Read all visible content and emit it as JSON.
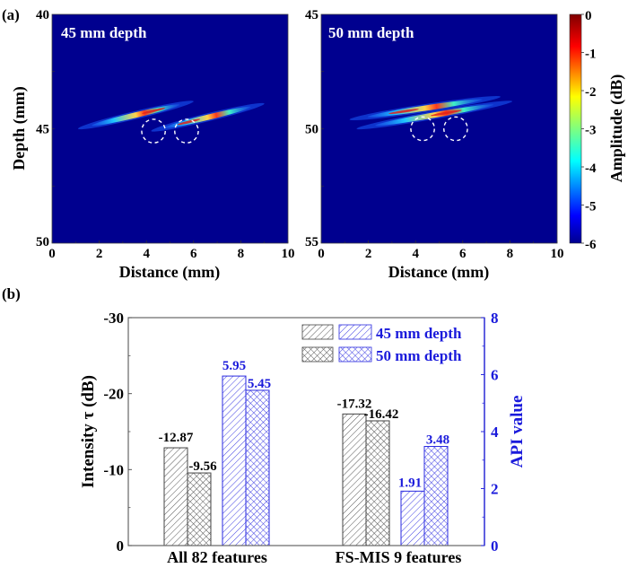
{
  "panel_labels": {
    "a": "(a)",
    "b": "(b)"
  },
  "chart_data": [
    {
      "type": "heatmap",
      "panel": "a-left",
      "title": "45 mm depth",
      "xlabel": "Distance (mm)",
      "ylabel": "Depth (mm)",
      "xlim": [
        0,
        10
      ],
      "ylim": [
        40,
        50
      ],
      "x_ticks": [
        "0",
        "2",
        "4",
        "6",
        "8",
        "10"
      ],
      "y_ticks": [
        "40",
        "45",
        "50"
      ],
      "background_color": "#00008f",
      "streaks": [
        {
          "x_start": 1.1,
          "x_end": 6.0,
          "depth_start": 45.0,
          "depth_end": 43.8,
          "peak_x": 4.3
        },
        {
          "x_start": 4.2,
          "x_end": 9.0,
          "depth_start": 45.1,
          "depth_end": 43.9,
          "peak_x": 5.8
        }
      ],
      "marker_circles": [
        {
          "x": 4.3,
          "depth": 45.1,
          "radius_mm": 0.5
        },
        {
          "x": 5.7,
          "depth": 45.1,
          "radius_mm": 0.5
        }
      ]
    },
    {
      "type": "heatmap",
      "panel": "a-right",
      "title": "50 mm depth",
      "xlabel": "Distance (mm)",
      "ylabel": "",
      "xlim": [
        0,
        10
      ],
      "ylim": [
        45,
        55
      ],
      "x_ticks": [
        "0",
        "2",
        "4",
        "6",
        "8",
        "10"
      ],
      "y_ticks": [
        "45",
        "50",
        "55"
      ],
      "background_color": "#00008f",
      "streaks": [
        {
          "x_start": 1.2,
          "x_end": 7.6,
          "depth_start": 49.6,
          "depth_end": 48.6,
          "peak_x": 3.5
        },
        {
          "x_start": 1.5,
          "x_end": 8.1,
          "depth_start": 50.0,
          "depth_end": 48.8,
          "peak_x": 5.3
        }
      ],
      "marker_circles": [
        {
          "x": 4.3,
          "depth": 50.0,
          "radius_mm": 0.5
        },
        {
          "x": 5.7,
          "depth": 50.0,
          "radius_mm": 0.5
        }
      ],
      "colorbar": {
        "label": "Amplitude (dB)",
        "range": [
          -6,
          0
        ],
        "ticks": [
          "0",
          "-1",
          "-2",
          "-3",
          "-4",
          "-5",
          "-6"
        ],
        "colormap": "jet"
      }
    },
    {
      "type": "bar",
      "panel": "b",
      "categories": [
        "All 82 features",
        "FS-MIS 9 features"
      ],
      "ylabel": "Intensity τ (dB)",
      "ylabel_right": "API value",
      "ylim": [
        0,
        -30
      ],
      "ylim_right": [
        0,
        8
      ],
      "y_ticks": [
        "0",
        "-10",
        "-20",
        "-30"
      ],
      "y_ticks_right": [
        "0",
        "2",
        "4",
        "6",
        "8"
      ],
      "series": [
        {
          "name": "Intensity 45 mm depth",
          "axis": "left",
          "pattern": "hatch",
          "color": "#333333",
          "values": [
            -12.87,
            -17.32
          ],
          "labels": [
            "-12.87",
            "-17.32"
          ]
        },
        {
          "name": "Intensity 50 mm depth",
          "axis": "left",
          "pattern": "crosshatch",
          "color": "#333333",
          "values": [
            -9.56,
            -16.42
          ],
          "labels": [
            "-9.56",
            "-16.42"
          ]
        },
        {
          "name": "API 45 mm depth",
          "axis": "right",
          "pattern": "hatch",
          "color": "#1a1adb",
          "values": [
            5.95,
            1.91
          ],
          "labels": [
            "5.95",
            "1.91"
          ]
        },
        {
          "name": "API 50 mm depth",
          "axis": "right",
          "pattern": "crosshatch",
          "color": "#1a1adb",
          "values": [
            5.45,
            3.48
          ],
          "labels": [
            "5.45",
            "3.48"
          ]
        }
      ],
      "legend": {
        "placement": "top-right",
        "entries": [
          "45 mm depth",
          "50 mm depth"
        ]
      },
      "colors": {
        "left_axis": "#555555",
        "right_axis": "#1a1adb",
        "label_blue": "#1a1adb"
      }
    }
  ]
}
